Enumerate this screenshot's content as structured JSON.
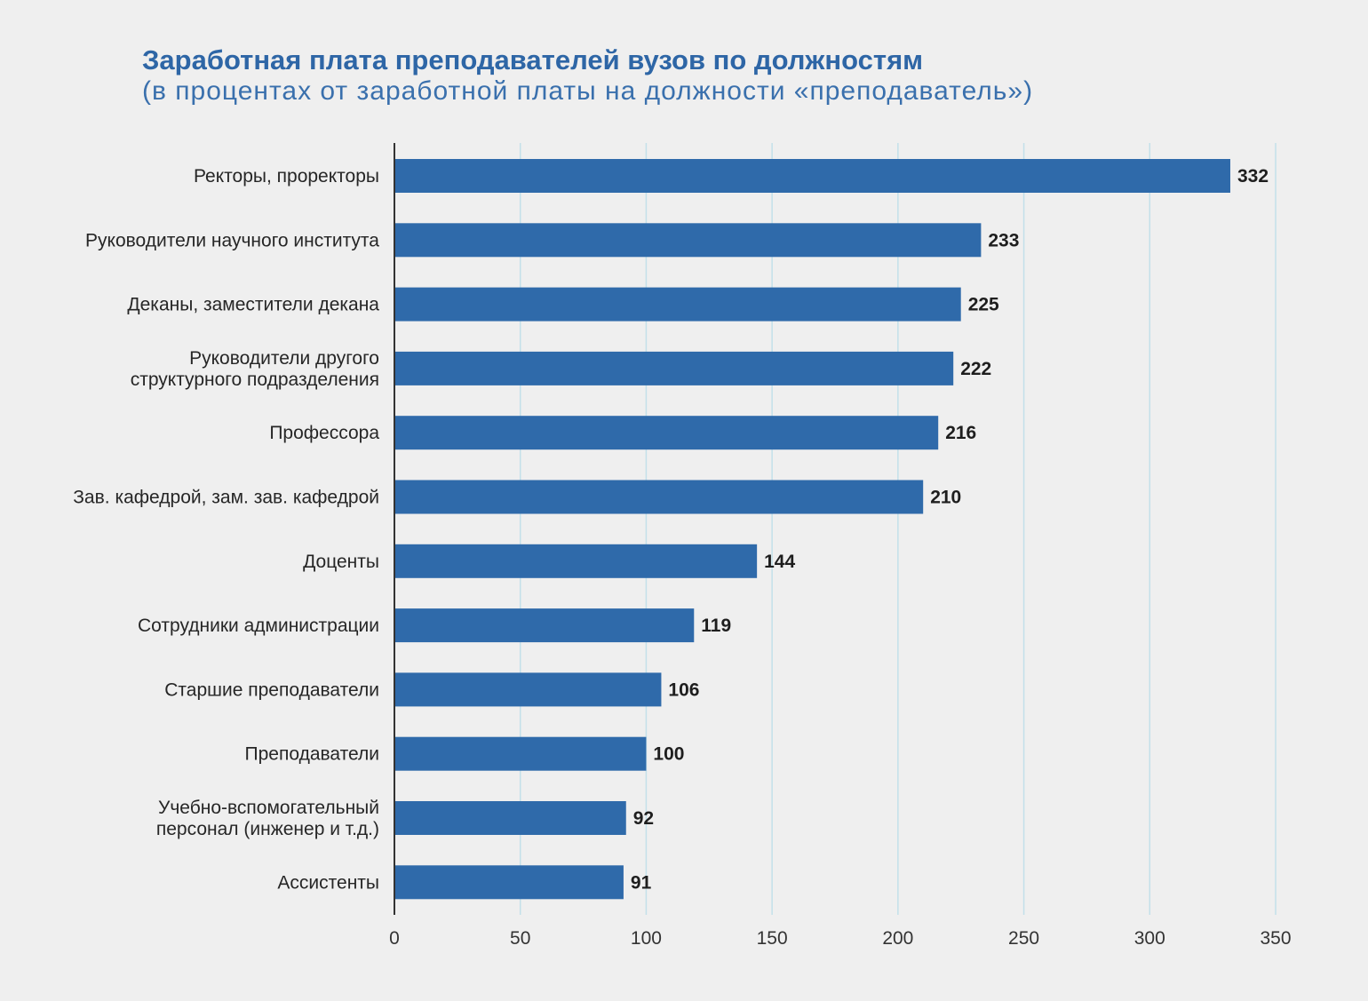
{
  "chart_data": {
    "type": "bar",
    "orientation": "horizontal",
    "title": "Заработная плата преподавателей вузов по должностям",
    "subtitle": "(в процентах от заработной платы на должности «преподаватель»)",
    "categories": [
      [
        "Ректоры, проректоры"
      ],
      [
        "Руководители научного института"
      ],
      [
        "Деканы, заместители декана"
      ],
      [
        "Руководители другого",
        "структурного подразделения"
      ],
      [
        "Профессора"
      ],
      [
        "Зав. кафедрой, зам. зав. кафедрой"
      ],
      [
        "Доценты"
      ],
      [
        "Сотрудники администрации"
      ],
      [
        "Старшие преподаватели"
      ],
      [
        "Преподаватели"
      ],
      [
        "Учебно-вспомогательный",
        "персонал (инженер и т.д.)"
      ],
      [
        "Ассистенты"
      ]
    ],
    "values": [
      332,
      233,
      225,
      222,
      216,
      210,
      144,
      119,
      106,
      100,
      92,
      91
    ],
    "xlim": [
      0,
      350
    ],
    "xticks": [
      0,
      50,
      100,
      150,
      200,
      250,
      300,
      350
    ],
    "grid": "vertical",
    "bar_color": "#2f6aaa",
    "grid_color": "#c3e0ea",
    "axis_color": "#333333"
  }
}
